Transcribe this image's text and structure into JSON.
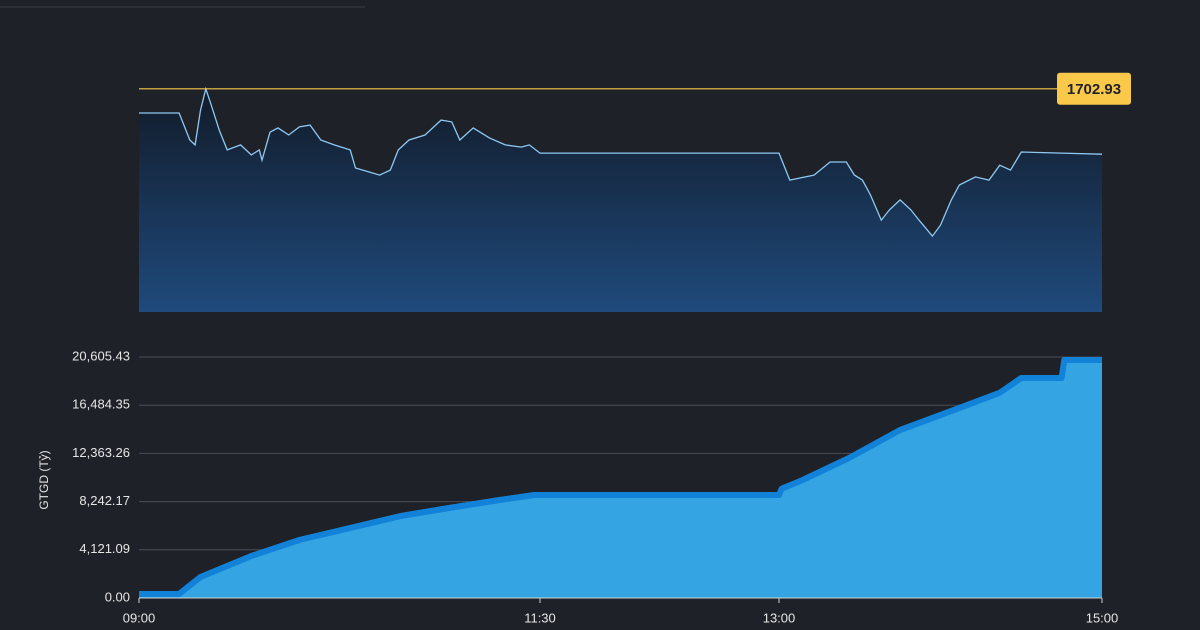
{
  "chart_data": [
    {
      "type": "area_line",
      "x": [
        "09:00",
        "09:15",
        "09:19",
        "09:21",
        "09:23",
        "09:25",
        "09:27",
        "09:30",
        "09:33",
        "09:38",
        "09:42",
        "09:45",
        "09:46",
        "09:49",
        "09:52",
        "09:56",
        "10:00",
        "10:04",
        "10:08",
        "10:13",
        "10:19",
        "10:21",
        "10:26",
        "10:30",
        "10:34",
        "10:37",
        "10:41",
        "10:47",
        "10:53",
        "10:57",
        "11:00",
        "11:05",
        "11:11",
        "11:17",
        "11:23",
        "11:26",
        "11:30",
        "13:00",
        "13:04",
        "13:08",
        "13:13",
        "13:19",
        "13:25",
        "13:28",
        "13:31",
        "13:34",
        "13:38",
        "13:41",
        "13:45",
        "13:49",
        "13:52",
        "13:57",
        "14:00",
        "14:04",
        "14:07",
        "14:13",
        "14:18",
        "14:22",
        "14:26",
        "14:30",
        "14:45",
        "15:00"
      ],
      "values": [
        1696.1,
        1696.1,
        1688.5,
        1687.1,
        1696.9,
        1702.93,
        1698.4,
        1691.3,
        1685.7,
        1687.1,
        1684.3,
        1685.7,
        1682.8,
        1690.7,
        1691.9,
        1689.9,
        1692.2,
        1692.7,
        1688.5,
        1687.1,
        1685.7,
        1680.6,
        1679.5,
        1678.6,
        1680.0,
        1685.7,
        1688.5,
        1689.9,
        1694.1,
        1693.6,
        1688.5,
        1691.9,
        1689.1,
        1687.1,
        1686.5,
        1687.1,
        1684.8,
        1684.8,
        1677.2,
        1677.8,
        1678.6,
        1682.3,
        1682.3,
        1678.6,
        1677.2,
        1673.0,
        1665.9,
        1668.8,
        1671.6,
        1668.8,
        1665.9,
        1661.4,
        1664.5,
        1671.6,
        1675.8,
        1678.1,
        1677.2,
        1681.4,
        1680.0,
        1685.1,
        1684.8,
        1684.5
      ],
      "ylim": [
        1640,
        1704
      ],
      "color": "#8ec9f2",
      "reference_line": {
        "value": 1702.93,
        "label": "1702.93",
        "color": "#fbc94a"
      }
    },
    {
      "type": "area",
      "y_label": "GTGD (Tỷ)",
      "x": [
        "09:00",
        "09:15",
        "09:23",
        "09:42",
        "10:00",
        "10:19",
        "10:38",
        "10:56",
        "11:15",
        "11:28",
        "11:30",
        "13:00",
        "13:01",
        "13:08",
        "13:26",
        "13:45",
        "14:04",
        "14:22",
        "14:30",
        "14:45",
        "14:46",
        "15:00"
      ],
      "values": [
        598,
        600,
        2052,
        3847,
        5215,
        6241,
        7267,
        7951,
        8635,
        9063,
        9063,
        9063,
        9600,
        10260,
        12226,
        14620,
        16245,
        17800,
        19066,
        19066,
        20605.43,
        20605.43
      ],
      "ylim": [
        0,
        20605.43
      ],
      "yticks": [
        {
          "value": 0,
          "label": "0.00"
        },
        {
          "value": 4121.09,
          "label": "4,121.09"
        },
        {
          "value": 8242.17,
          "label": "8,242.17"
        },
        {
          "value": 12363.26,
          "label": "12,363.26"
        },
        {
          "value": 16484.35,
          "label": "16,484.35"
        },
        {
          "value": 20605.43,
          "label": "20,605.43"
        }
      ],
      "xticks": [
        "09:00",
        "11:30",
        "13:00",
        "15:00"
      ],
      "grid": true,
      "color": "#34a4e2",
      "edge_color": "#1282d9"
    }
  ]
}
